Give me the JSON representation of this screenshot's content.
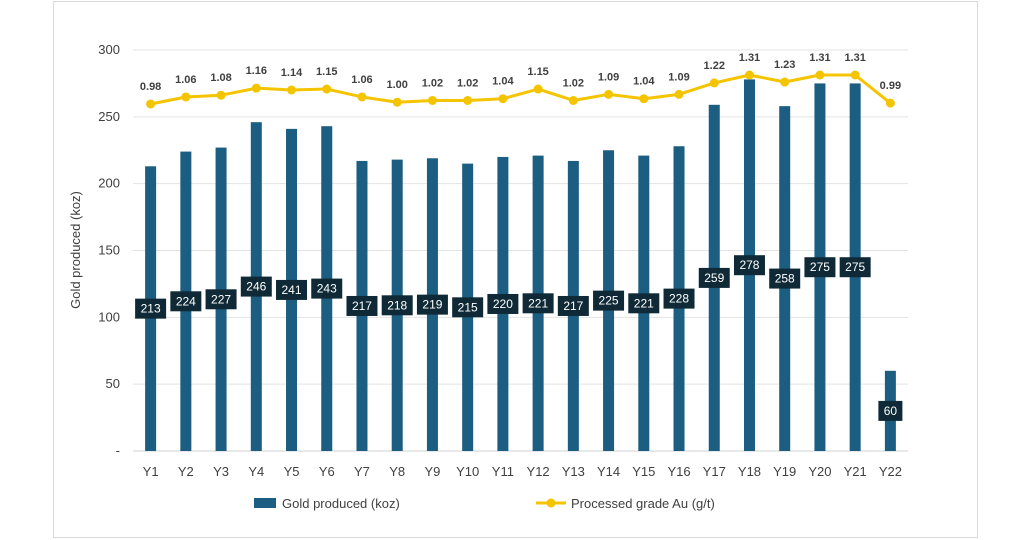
{
  "chart_data": {
    "type": "bar",
    "categories": [
      "Y1",
      "Y2",
      "Y3",
      "Y4",
      "Y5",
      "Y6",
      "Y7",
      "Y8",
      "Y9",
      "Y10",
      "Y11",
      "Y12",
      "Y13",
      "Y14",
      "Y15",
      "Y16",
      "Y17",
      "Y18",
      "Y19",
      "Y20",
      "Y21",
      "Y22"
    ],
    "ylabel": "Gold produced (koz)",
    "ylim": [
      0,
      300
    ],
    "yticks": [
      {
        "value": 0,
        "label": "-"
      },
      {
        "value": 50,
        "label": "50"
      },
      {
        "value": 100,
        "label": "100"
      },
      {
        "value": 150,
        "label": "150"
      },
      {
        "value": 200,
        "label": "200"
      },
      {
        "value": 250,
        "label": "250"
      },
      {
        "value": 300,
        "label": "300"
      }
    ],
    "grid": true,
    "legend_position": "bottom",
    "series": [
      {
        "name": "Gold produced (koz)",
        "type": "bar",
        "color": "#1b5e82",
        "values": [
          213,
          224,
          227,
          246,
          241,
          243,
          217,
          218,
          219,
          215,
          220,
          221,
          217,
          225,
          221,
          228,
          259,
          278,
          258,
          275,
          275,
          60
        ],
        "labels": [
          "213",
          "224",
          "227",
          "246",
          "241",
          "243",
          "217",
          "218",
          "219",
          "215",
          "220",
          "221",
          "217",
          "225",
          "221",
          "228",
          "259",
          "278",
          "258",
          "275",
          "275",
          "60"
        ]
      },
      {
        "name": "Processed grade Au (g/t)",
        "type": "line",
        "color": "#f5c400",
        "values": [
          0.98,
          1.06,
          1.08,
          1.16,
          1.14,
          1.15,
          1.06,
          1.0,
          1.02,
          1.02,
          1.04,
          1.15,
          1.02,
          1.09,
          1.04,
          1.09,
          1.22,
          1.31,
          1.23,
          1.31,
          1.31,
          0.99
        ],
        "labels": [
          "0.98",
          "1.06",
          "1.08",
          "1.16",
          "1.14",
          "1.15",
          "1.06",
          "1.00",
          "1.02",
          "1.02",
          "1.04",
          "1.15",
          "1.02",
          "1.09",
          "1.04",
          "1.09",
          "1.22",
          "1.31",
          "1.23",
          "1.31",
          "1.31",
          "0.99"
        ]
      }
    ]
  }
}
